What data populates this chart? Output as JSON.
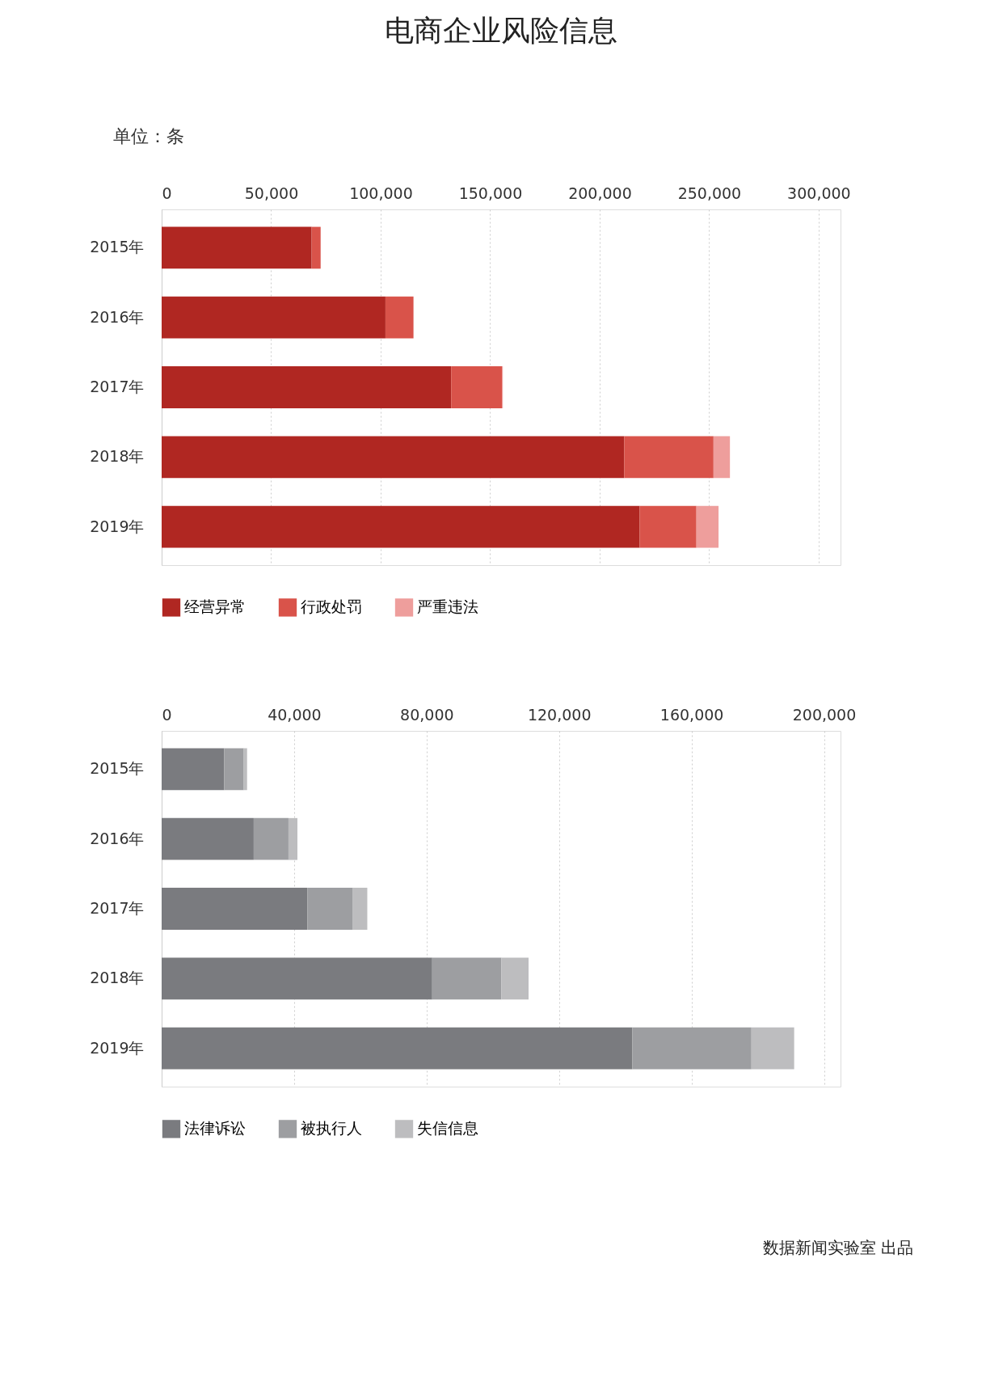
{
  "chart_data": [
    {
      "type": "bar",
      "title": "电商企业风险信息",
      "orientation": "horizontal",
      "stacked": true,
      "categories": [
        "2015年",
        "2016年",
        "2017年",
        "2018年",
        "2019年"
      ],
      "series": [
        {
          "name": "经营异常",
          "color": "#b02722",
          "values": [
            68500,
            102200,
            132200,
            211200,
            218300
          ]
        },
        {
          "name": "行政处罚",
          "color": "#d9534a",
          "values": [
            4100,
            12800,
            23200,
            40800,
            25900
          ]
        },
        {
          "name": "严重违法",
          "color": "#ee9e9c",
          "values": [
            null,
            null,
            400,
            7500,
            10100
          ]
        }
      ],
      "xlim": [
        0,
        310000
      ],
      "xticks": [
        {
          "value": 0,
          "label": "0"
        },
        {
          "value": 50000,
          "label": "50,000"
        },
        {
          "value": 100000,
          "label": "100,000"
        },
        {
          "value": 150000,
          "label": "150,000"
        },
        {
          "value": 200000,
          "label": "200,000"
        },
        {
          "value": 250000,
          "label": "250,000"
        },
        {
          "value": 300000,
          "label": "300,000"
        }
      ],
      "grid": "x",
      "legend": "bottom",
      "annotations": [
        "单位：条"
      ]
    },
    {
      "type": "bar",
      "orientation": "horizontal",
      "stacked": true,
      "categories": [
        "2015年",
        "2016年",
        "2017年",
        "2018年",
        "2019年"
      ],
      "series": [
        {
          "name": "法律诉讼",
          "color": "#7a7b7f",
          "values": [
            18900,
            27800,
            44000,
            81700,
            142100
          ]
        },
        {
          "name": "被执行人",
          "color": "#9d9ea1",
          "values": [
            5900,
            10500,
            13600,
            20900,
            36000
          ]
        },
        {
          "name": "失信信息",
          "color": "#bdbdbf",
          "values": [
            1000,
            2700,
            4500,
            8200,
            12900
          ]
        }
      ],
      "xlim": [
        0,
        205000
      ],
      "xticks": [
        {
          "value": 0,
          "label": "0"
        },
        {
          "value": 40000,
          "label": "40,000"
        },
        {
          "value": 80000,
          "label": "80,000"
        },
        {
          "value": 120000,
          "label": "120,000"
        },
        {
          "value": 160000,
          "label": "160,000"
        },
        {
          "value": 200000,
          "label": "200,000"
        }
      ],
      "grid": "x",
      "legend": "bottom",
      "annotations": [
        "数据新闻实验室 出品"
      ]
    }
  ]
}
